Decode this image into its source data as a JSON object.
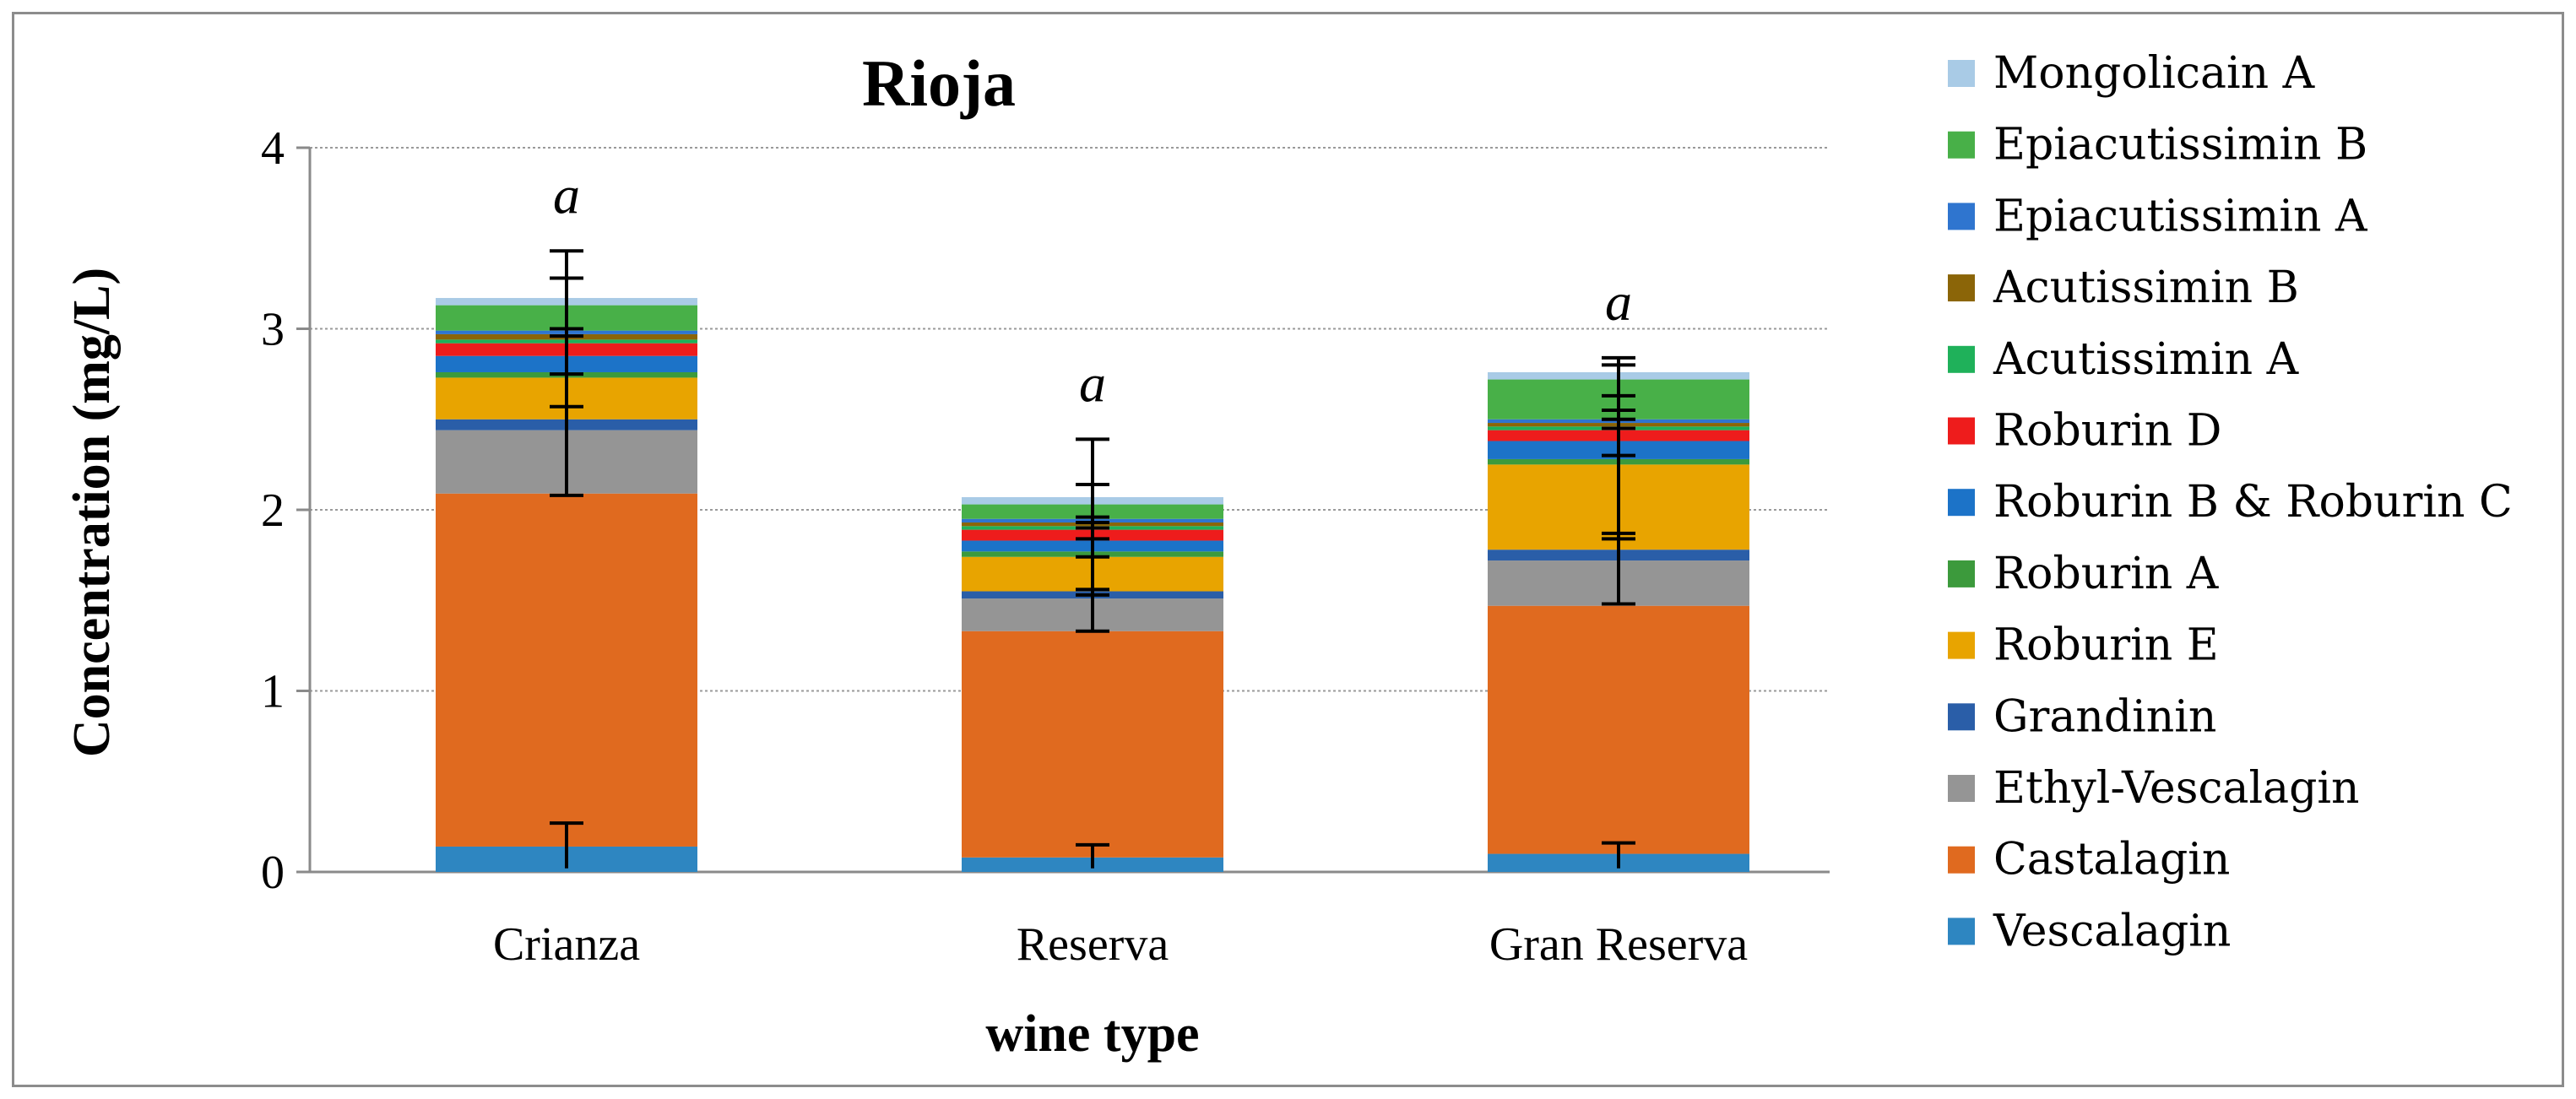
{
  "chart_data": {
    "type": "bar",
    "stacked": true,
    "title": "Rioja",
    "xlabel": "wine type",
    "ylabel": "Concentration (mg/L)",
    "ylim": [
      0,
      4
    ],
    "yticks": [
      "0",
      "1",
      "2",
      "3",
      "4"
    ],
    "grid": true,
    "legend_position": "right",
    "categories": [
      "Crianza",
      "Reserva",
      "Gran Reserva"
    ],
    "significance_labels": [
      "a",
      "a",
      "a"
    ],
    "series": [
      {
        "name": "Vescalagin",
        "color": "#2e86c1",
        "values": [
          0.14,
          0.08,
          0.1
        ],
        "errors": [
          0.13,
          0.07,
          0.07
        ]
      },
      {
        "name": "Castalagin",
        "color": "#e06a1f",
        "values": [
          1.95,
          1.25,
          1.37
        ],
        "errors": [
          0.0,
          0.0,
          0.0
        ]
      },
      {
        "name": "Ethyl-Vescalagin",
        "color": "#959595",
        "values": [
          0.35,
          0.18,
          0.25
        ],
        "errors": [
          0.0,
          0.0,
          0.0
        ]
      },
      {
        "name": "Grandinin",
        "color": "#2a5ea8",
        "values": [
          0.06,
          0.04,
          0.06
        ],
        "errors": [
          0.0,
          0.0,
          0.0
        ]
      },
      {
        "name": "Roburin E",
        "color": "#e8a400",
        "values": [
          0.23,
          0.19,
          0.47
        ],
        "errors": [
          0.0,
          0.0,
          0.0
        ]
      },
      {
        "name": "Roburin A",
        "color": "#3c9a3c",
        "values": [
          0.03,
          0.03,
          0.03
        ],
        "errors": [
          0.0,
          0.0,
          0.0
        ]
      },
      {
        "name": "Roburin B & Roburin C",
        "color": "#1c73c8",
        "values": [
          0.09,
          0.06,
          0.1
        ],
        "errors": [
          0.0,
          0.0,
          0.0
        ]
      },
      {
        "name": "Roburin D",
        "color": "#ee1c1c",
        "values": [
          0.07,
          0.06,
          0.06
        ],
        "errors": [
          0.0,
          0.0,
          0.0
        ]
      },
      {
        "name": "Acutissimin A",
        "color": "#1fb15a",
        "values": [
          0.02,
          0.02,
          0.02
        ],
        "errors": [
          0.0,
          0.0,
          0.0
        ]
      },
      {
        "name": "Acutissimin B",
        "color": "#8b6508",
        "values": [
          0.03,
          0.02,
          0.02
        ],
        "errors": [
          0.0,
          0.0,
          0.0
        ]
      },
      {
        "name": "Epiacutissimin A",
        "color": "#2f75cf",
        "values": [
          0.02,
          0.02,
          0.02
        ],
        "errors": [
          0.0,
          0.0,
          0.0
        ]
      },
      {
        "name": "Epiacutissimin B",
        "color": "#48b048",
        "values": [
          0.14,
          0.08,
          0.22
        ],
        "errors": [
          0.0,
          0.0,
          0.0
        ]
      },
      {
        "name": "Mongolicain A",
        "color": "#a9cbe6",
        "values": [
          0.04,
          0.04,
          0.04
        ],
        "errors": [
          0.0,
          0.0,
          0.0
        ]
      }
    ],
    "error_caps": [
      {
        "category": "Crianza",
        "tops": [
          0.27,
          2.57,
          2.75,
          2.96,
          3.0,
          3.28,
          3.43
        ],
        "bottom": 2.08
      },
      {
        "category": "Reserva",
        "tops": [
          0.15,
          1.53,
          1.56,
          1.74,
          1.84,
          1.9,
          1.93,
          1.96,
          2.14,
          2.39
        ],
        "bottom": 1.33
      },
      {
        "category": "Gran Reserva",
        "tops": [
          0.16,
          1.84,
          1.87,
          2.3,
          2.45,
          2.5,
          2.55,
          2.63,
          2.8,
          2.84
        ],
        "bottom": 1.48
      }
    ]
  }
}
